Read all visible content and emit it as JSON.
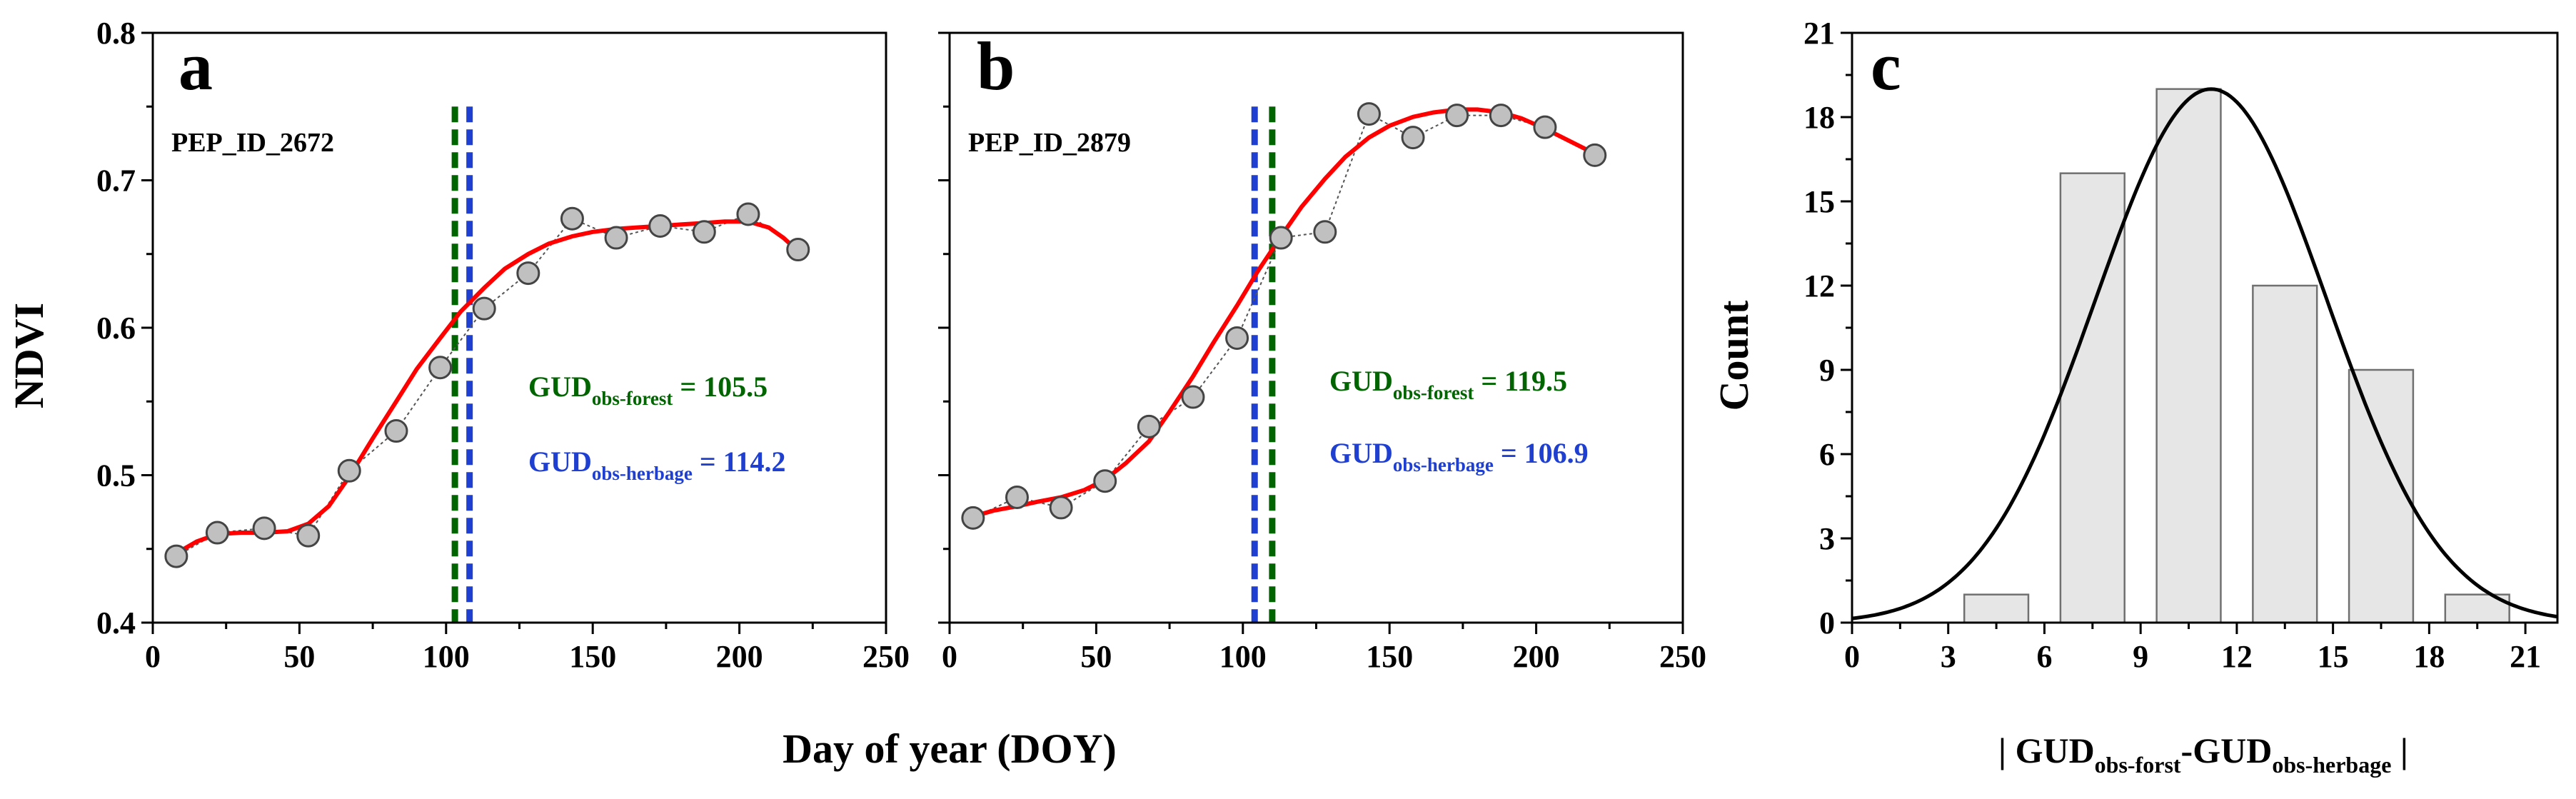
{
  "figure": {
    "shared_xlabel": "Day of year (DOY)",
    "colors": {
      "fit": "#ff0000",
      "forest": "#006400",
      "herbage": "#1e3fd0",
      "point_fill": "#c0c0c0",
      "bar_fill": "#e6e6e6"
    }
  },
  "chart_data": [
    {
      "type": "scatter",
      "panel": "a",
      "site_label": "PEP_ID_2672",
      "ylabel": "NDVI",
      "xlabel": "Day of year (DOY)",
      "xlim": [
        0,
        250
      ],
      "ylim": [
        0.4,
        0.8
      ],
      "xticks": [
        0,
        50,
        100,
        150,
        200,
        250
      ],
      "yticks": [
        0.4,
        0.5,
        0.6,
        0.7,
        0.8
      ],
      "points": {
        "x": [
          8,
          22,
          38,
          53,
          67,
          83,
          98,
          113,
          128,
          143,
          158,
          173,
          188,
          203,
          220
        ],
        "y": [
          0.445,
          0.461,
          0.464,
          0.459,
          0.503,
          0.53,
          0.573,
          0.613,
          0.637,
          0.674,
          0.661,
          0.669,
          0.665,
          0.677,
          0.653
        ]
      },
      "fit": {
        "x": [
          8,
          15,
          22,
          30,
          38,
          46,
          53,
          60,
          67,
          75,
          83,
          90,
          98,
          105,
          113,
          120,
          128,
          135,
          143,
          150,
          158,
          165,
          173,
          180,
          188,
          195,
          203,
          210,
          215,
          220
        ],
        "y": [
          0.447,
          0.455,
          0.46,
          0.461,
          0.461,
          0.462,
          0.467,
          0.479,
          0.499,
          0.525,
          0.55,
          0.572,
          0.593,
          0.611,
          0.627,
          0.64,
          0.65,
          0.657,
          0.662,
          0.665,
          0.667,
          0.668,
          0.669,
          0.67,
          0.671,
          0.672,
          0.672,
          0.668,
          0.661,
          0.652
        ]
      },
      "vlines": [
        {
          "name": "forest",
          "x": 103,
          "color": "#006400"
        },
        {
          "name": "herbage",
          "x": 108,
          "color": "#1e3fd0"
        }
      ],
      "annotations": {
        "forest": {
          "base": "GUD",
          "sub": "obs-forest",
          "rest": " = 105.5"
        },
        "herbage": {
          "base": "GUD",
          "sub": "obs-herbage",
          "rest": " = 114.2"
        }
      }
    },
    {
      "type": "scatter",
      "panel": "b",
      "site_label": "PEP_ID_2879",
      "xlabel": "Day of year (DOY)",
      "xlim": [
        0,
        250
      ],
      "ylim": [
        0.4,
        0.8
      ],
      "xticks": [
        0,
        50,
        100,
        150,
        200,
        250
      ],
      "yticks": [
        0.4,
        0.5,
        0.6,
        0.7,
        0.8
      ],
      "points": {
        "x": [
          8,
          23,
          38,
          53,
          68,
          83,
          98,
          113,
          128,
          143,
          158,
          173,
          188,
          203,
          220
        ],
        "y": [
          0.471,
          0.485,
          0.478,
          0.496,
          0.533,
          0.553,
          0.593,
          0.661,
          0.665,
          0.745,
          0.729,
          0.744,
          0.744,
          0.736,
          0.717
        ]
      },
      "fit": {
        "x": [
          8,
          15,
          23,
          30,
          38,
          46,
          53,
          60,
          68,
          75,
          83,
          90,
          98,
          105,
          113,
          120,
          128,
          135,
          143,
          150,
          158,
          165,
          173,
          180,
          188,
          195,
          203,
          210,
          220
        ],
        "y": [
          0.472,
          0.476,
          0.479,
          0.482,
          0.485,
          0.49,
          0.497,
          0.508,
          0.523,
          0.543,
          0.567,
          0.59,
          0.615,
          0.638,
          0.662,
          0.682,
          0.701,
          0.716,
          0.729,
          0.737,
          0.743,
          0.746,
          0.748,
          0.748,
          0.746,
          0.742,
          0.735,
          0.728,
          0.718
        ]
      },
      "vlines": [
        {
          "name": "herbage",
          "x": 104,
          "color": "#1e3fd0"
        },
        {
          "name": "forest",
          "x": 110,
          "color": "#006400"
        }
      ],
      "annotations": {
        "forest": {
          "base": "GUD",
          "sub": "obs-forest",
          "rest": " = 119.5"
        },
        "herbage": {
          "base": "GUD",
          "sub": "obs-herbage",
          "rest": " = 106.9"
        }
      }
    },
    {
      "type": "bar",
      "panel": "c",
      "ylabel": "Count",
      "xlabel": {
        "open": "| ",
        "base1": "GUD",
        "sub1": "obs-forst",
        "mid": "-",
        "base2": "GUD",
        "sub2": "obs-herbage",
        "close": " |"
      },
      "xlim": [
        0,
        22
      ],
      "ylim": [
        0,
        21
      ],
      "xticks": [
        0,
        3,
        6,
        9,
        12,
        15,
        18,
        21
      ],
      "yticks": [
        0,
        3,
        6,
        9,
        12,
        15,
        18,
        21
      ],
      "bin_width": 2,
      "bins": [
        {
          "center": 4.5,
          "value": 1
        },
        {
          "center": 7.5,
          "value": 16
        },
        {
          "center": 10.5,
          "value": 19
        },
        {
          "center": 13.5,
          "value": 12
        },
        {
          "center": 16.5,
          "value": 9
        },
        {
          "center": 19.5,
          "value": 1
        }
      ],
      "normal_curve": {
        "mean": 11.2,
        "sd": 3.6,
        "peak": 19
      }
    }
  ]
}
